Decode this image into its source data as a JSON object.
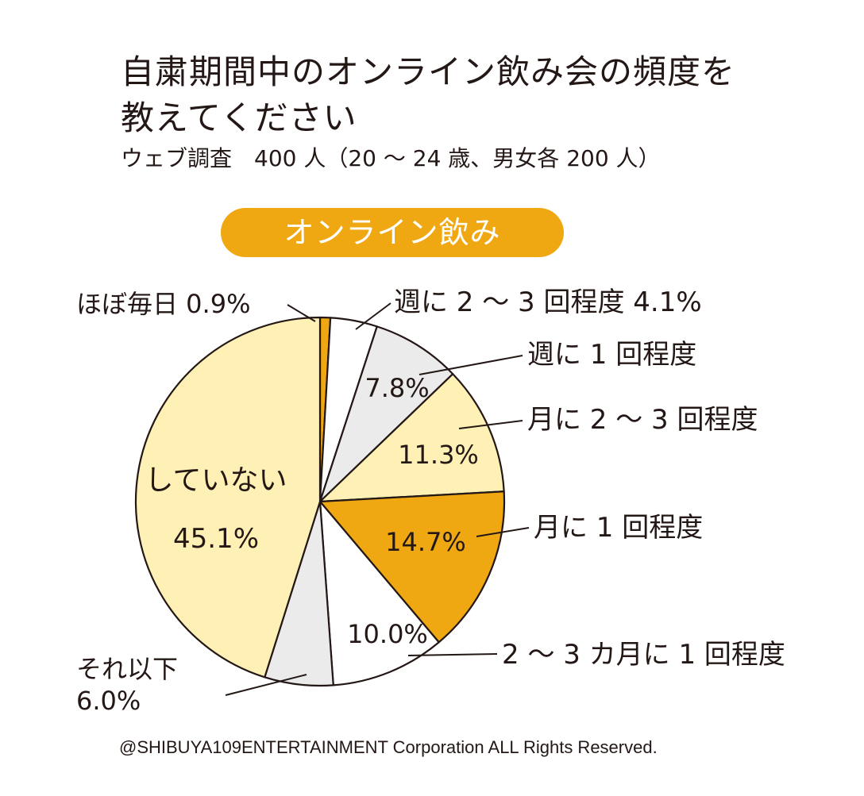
{
  "header": {
    "title_line1": "自粛期間中のオンライン飲み会の頻度を",
    "title_line2": "教えてください",
    "subtitle": "ウェブ調査　400 人（20 ～ 24 歳、男女各 200 人）",
    "category_pill": "オンライン飲み"
  },
  "chart_data": {
    "type": "pie",
    "title": "自粛期間中のオンライン飲み会の頻度を教えてください",
    "subtitle": "ウェブ調査　400 人（20 ～ 24 歳、男女各 200 人）",
    "category": "オンライン飲み",
    "start": "12 o'clock, clockwise",
    "slices": [
      {
        "label": "ほぼ毎日",
        "value": 0.9,
        "value_text": "0.9%",
        "color": "#f0a812",
        "label_text": "ほぼ毎日 0.9%"
      },
      {
        "label": "週に 2 ～ 3 回程度",
        "value": 4.1,
        "value_text": "4.1%",
        "color": "#ffffff",
        "label_text": "週に 2 ～ 3 回程度 4.1%"
      },
      {
        "label": "週に 1 回程度",
        "value": 7.8,
        "value_text": "7.8%",
        "color": "#ebebeb",
        "label_text": "週に 1 回程度"
      },
      {
        "label": "月に 2 ～ 3 回程度",
        "value": 11.3,
        "value_text": "11.3%",
        "color": "#fff0b5",
        "label_text": "月に 2 ～ 3 回程度"
      },
      {
        "label": "月に 1 回程度",
        "value": 14.7,
        "value_text": "14.7%",
        "color": "#f0a812",
        "label_text": "月に 1 回程度"
      },
      {
        "label": "2 ～ 3 カ月に 1 回程度",
        "value": 10.0,
        "value_text": "10.0%",
        "color": "#ffffff",
        "label_text": "2 ～ 3 カ月に 1 回程度"
      },
      {
        "label": "それ以下",
        "value": 6.0,
        "value_text": "6.0%",
        "color": "#ebebeb",
        "label_text": "それ以下"
      },
      {
        "label": "していない",
        "value": 45.1,
        "value_text": "45.1%",
        "color": "#fff0b5",
        "label_text": "していない"
      }
    ]
  },
  "footer": {
    "copyright": "@SHIBUYA109ENTERTAINMENT Corporation ALL Rights Reserved."
  }
}
